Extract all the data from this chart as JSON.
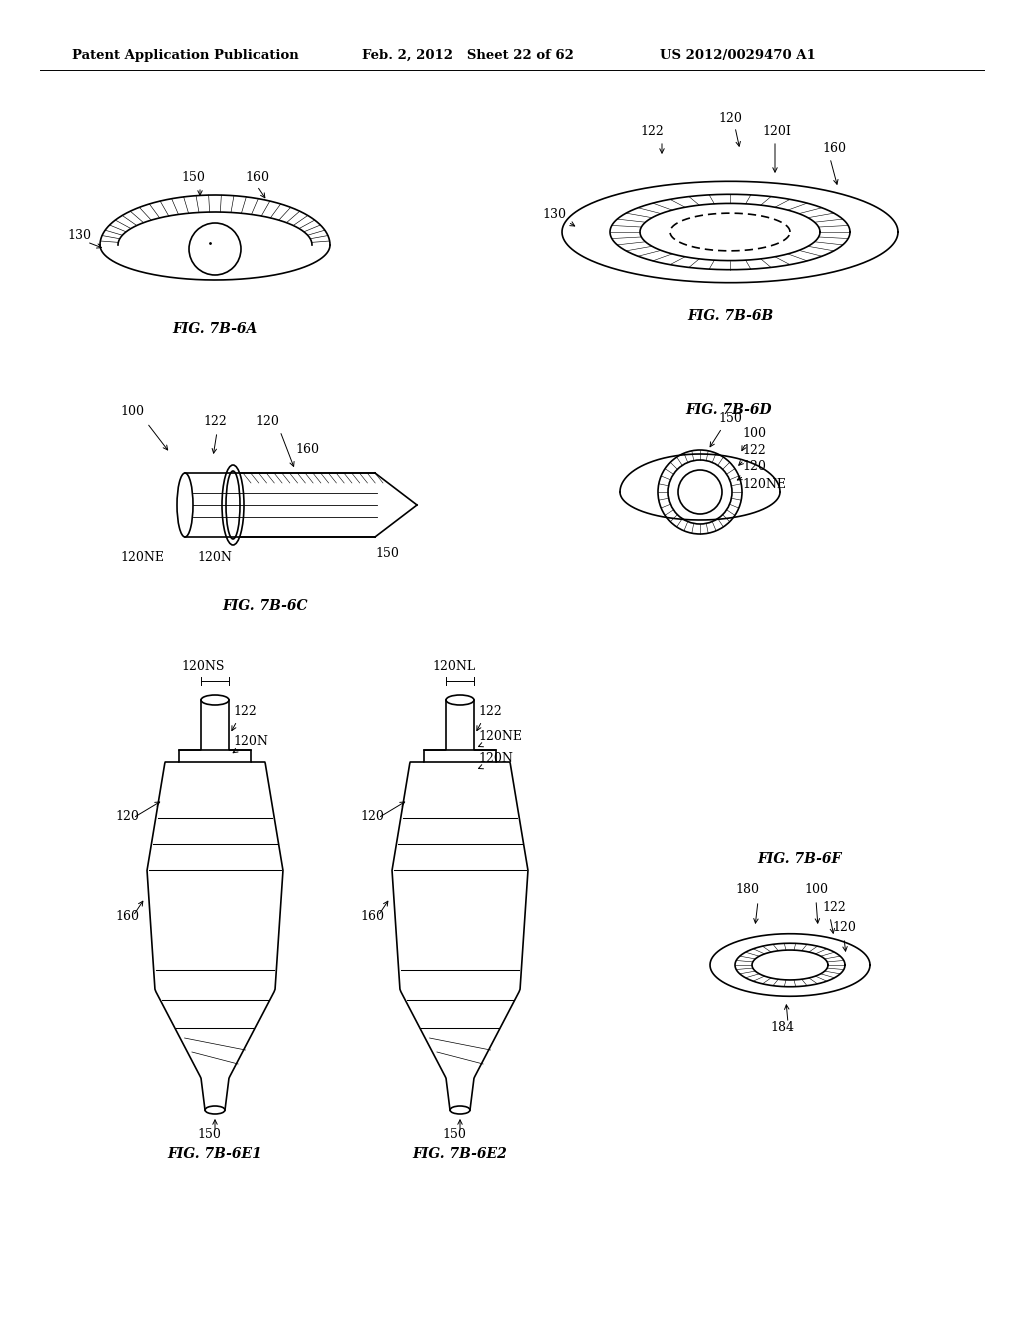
{
  "bg_color": "#ffffff",
  "header_left": "Patent Application Publication",
  "header_mid": "Feb. 2, 2012   Sheet 22 of 62",
  "header_right": "US 2012/0029470 A1",
  "fig_labels": {
    "7B6A": "FIG. 7B-6A",
    "7B6B": "FIG. 7B-6B",
    "7B6C": "FIG. 7B-6C",
    "7B6D": "FIG. 7B-6D",
    "7B6E1": "FIG. 7B-6E1",
    "7B6E2": "FIG. 7B-6E2",
    "7B6F": "FIG. 7B-6F"
  },
  "lw": 1.2,
  "font_size": 9,
  "label_font": 10
}
